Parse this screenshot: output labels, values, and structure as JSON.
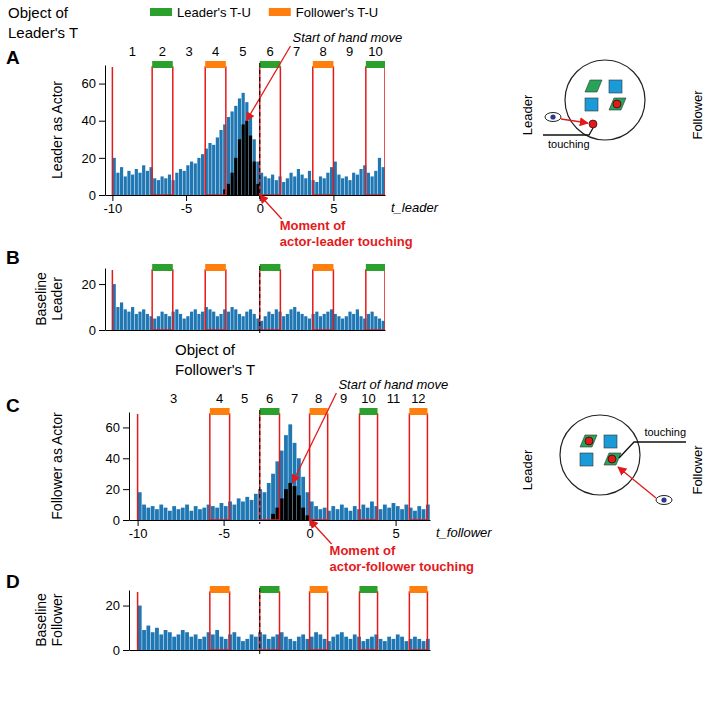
{
  "chart_data": [
    {
      "type": "histogram",
      "panel": "A",
      "title": "Object of Leader's T",
      "y_label": "Leader as Actor",
      "x_label": "t_leader",
      "xlim": [
        -10.5,
        8.5
      ],
      "ylim": [
        0,
        70
      ],
      "xticks": [
        -10,
        -5,
        0,
        5
      ],
      "yticks": [
        0,
        20,
        40,
        60
      ],
      "legend": "top",
      "legend_entries": [
        {
          "name": "Leader's T-U",
          "color": "#2ca02c"
        },
        {
          "name": "Follower's T-U",
          "color": "#ff7f0e"
        }
      ],
      "bins": [
        -10.5,
        -10.25,
        -10,
        -9.75,
        -9.5,
        -9.25,
        -9,
        -8.75,
        -8.5,
        -8.25,
        -8,
        -7.75,
        -7.5,
        -7.25,
        -7,
        -6.75,
        -6.5,
        -6.25,
        -6,
        -5.75,
        -5.5,
        -5.25,
        -5,
        -4.75,
        -4.5,
        -4.25,
        -4,
        -3.75,
        -3.5,
        -3.25,
        -3,
        -2.75,
        -2.5,
        -2.25,
        -2,
        -1.75,
        -1.5,
        -1.25,
        -1,
        -0.75,
        -0.5,
        -0.25,
        0,
        0.25,
        0.5,
        0.75,
        1,
        1.25,
        1.5,
        1.75,
        2,
        2.25,
        2.5,
        2.75,
        3,
        3.25,
        3.5,
        3.75,
        4,
        4.25,
        4.5,
        4.75,
        5,
        5.25,
        5.5,
        5.75,
        6,
        6.25,
        6.5,
        6.75,
        7,
        7.25,
        7.5,
        7.75,
        8,
        8.25,
        8.5
      ],
      "series": [
        {
          "color": "#1f77b4",
          "values": [
            0,
            0,
            20,
            12,
            15,
            10,
            13,
            11,
            14,
            12,
            16,
            13,
            15,
            9,
            8,
            10,
            9,
            11,
            8,
            12,
            14,
            13,
            16,
            18,
            17,
            20,
            22,
            25,
            28,
            27,
            31,
            35,
            38,
            42,
            45,
            48,
            52,
            55,
            50,
            42,
            30,
            18,
            12,
            10,
            9,
            11,
            8,
            10,
            7,
            9,
            12,
            10,
            14,
            11,
            9,
            13,
            8,
            7,
            10,
            9,
            12,
            15,
            18,
            11,
            9,
            10,
            8,
            12,
            11,
            14,
            16,
            12,
            10,
            13,
            20,
            15
          ]
        },
        {
          "color": "#000000",
          "values": [
            0,
            0,
            0,
            0,
            0,
            0,
            0,
            0,
            0,
            0,
            0,
            0,
            0,
            0,
            0,
            0,
            0,
            0,
            0,
            0,
            0,
            0,
            0,
            0,
            0,
            0,
            0,
            0,
            0,
            0,
            0,
            0,
            3,
            6,
            12,
            20,
            30,
            38,
            40,
            32,
            18,
            6,
            0,
            0,
            0,
            0,
            0,
            0,
            0,
            0,
            0,
            0,
            0,
            0,
            0,
            0,
            0,
            0,
            0,
            0,
            0,
            0,
            0,
            0,
            0,
            0,
            0,
            0,
            0,
            0,
            0,
            0,
            0,
            0,
            0,
            0
          ]
        }
      ],
      "segments": [
        {
          "label": "1",
          "start": -10,
          "end": -7.3
        },
        {
          "label": "2",
          "start": -7.3,
          "end": -5.9,
          "color": "#2ca02c"
        },
        {
          "label": "3",
          "start": -5.9,
          "end": -3.7
        },
        {
          "label": "4",
          "start": -3.7,
          "end": -2.3,
          "color": "#ff7f0e"
        },
        {
          "label": "5",
          "start": -2.3,
          "end": 0
        },
        {
          "label": "6",
          "start": 0,
          "end": 1.4,
          "color": "#2ca02c"
        },
        {
          "label": "7",
          "start": 1.4,
          "end": 3.6
        },
        {
          "label": "8",
          "start": 3.6,
          "end": 5,
          "color": "#ff7f0e"
        },
        {
          "label": "9",
          "start": 5,
          "end": 7.2
        },
        {
          "label": "10",
          "start": 7.2,
          "end": 8.5,
          "color": "#2ca02c"
        }
      ],
      "annotations": [
        {
          "text": "Start of hand move",
          "x": -0.9,
          "y": 40
        },
        {
          "text": "Moment of actor-leader touching",
          "x": 0,
          "y": 0
        }
      ],
      "vline_x": 0
    },
    {
      "type": "histogram",
      "panel": "B",
      "y_label": "Baseline Leader",
      "tick_labels": "y",
      "xlim": [
        -10.5,
        8.5
      ],
      "ylim": [
        0,
        27
      ],
      "yticks": [
        0,
        20
      ],
      "bins": [
        -10.5,
        -10.25,
        -10,
        -9.75,
        -9.5,
        -9.25,
        -9,
        -8.75,
        -8.5,
        -8.25,
        -8,
        -7.75,
        -7.5,
        -7.25,
        -7,
        -6.75,
        -6.5,
        -6.25,
        -6,
        -5.75,
        -5.5,
        -5.25,
        -5,
        -4.75,
        -4.5,
        -4.25,
        -4,
        -3.75,
        -3.5,
        -3.25,
        -3,
        -2.75,
        -2.5,
        -2.25,
        -2,
        -1.75,
        -1.5,
        -1.25,
        -1,
        -0.75,
        -0.5,
        -0.25,
        0,
        0.25,
        0.5,
        0.75,
        1,
        1.25,
        1.5,
        1.75,
        2,
        2.25,
        2.5,
        2.75,
        3,
        3.25,
        3.5,
        3.75,
        4,
        4.25,
        4.5,
        4.75,
        5,
        5.25,
        5.5,
        5.75,
        6,
        6.25,
        6.5,
        6.75,
        7,
        7.25,
        7.5,
        7.75,
        8,
        8.25,
        8.5
      ],
      "series": [
        {
          "color": "#1f77b4",
          "values": [
            0,
            0,
            20,
            10,
            12,
            9,
            8,
            10,
            7,
            8,
            9,
            7,
            6,
            5,
            6,
            8,
            7,
            6,
            8,
            9,
            7,
            5,
            6,
            8,
            9,
            7,
            8,
            10,
            9,
            8,
            6,
            7,
            9,
            8,
            10,
            9,
            7,
            6,
            8,
            9,
            7,
            5,
            4,
            6,
            8,
            7,
            9,
            8,
            6,
            7,
            9,
            10,
            8,
            7,
            6,
            5,
            7,
            8,
            6,
            7,
            8,
            9,
            7,
            6,
            5,
            6,
            8,
            7,
            9,
            6,
            5,
            7,
            8,
            6,
            5,
            4
          ]
        }
      ],
      "start_line": -10,
      "boxes": [
        {
          "start": -7.3,
          "end": -5.9,
          "color": "#2ca02c"
        },
        {
          "start": -3.7,
          "end": -2.3,
          "color": "#ff7f0e"
        },
        {
          "start": 0,
          "end": 1.4,
          "color": "#2ca02c"
        },
        {
          "start": 3.6,
          "end": 5,
          "color": "#ff7f0e"
        },
        {
          "start": 7.2,
          "end": 8.5,
          "color": "#2ca02c"
        }
      ]
    },
    {
      "type": "histogram",
      "panel": "C",
      "title": "Object of Follower's T",
      "y_label": "Follower as Actor",
      "x_label": "t_follower",
      "xlim": [
        -10.5,
        7
      ],
      "ylim": [
        0,
        70
      ],
      "xticks": [
        -10,
        -5,
        0,
        5
      ],
      "yticks": [
        0,
        20,
        40,
        60
      ],
      "bins": [
        -10.5,
        -10.25,
        -10,
        -9.75,
        -9.5,
        -9.25,
        -9,
        -8.75,
        -8.5,
        -8.25,
        -8,
        -7.75,
        -7.5,
        -7.25,
        -7,
        -6.75,
        -6.5,
        -6.25,
        -6,
        -5.75,
        -5.5,
        -5.25,
        -5,
        -4.75,
        -4.5,
        -4.25,
        -4,
        -3.75,
        -3.5,
        -3.25,
        -3,
        -2.75,
        -2.5,
        -2.25,
        -2,
        -1.75,
        -1.5,
        -1.25,
        -1,
        -0.75,
        -0.5,
        -0.25,
        0,
        0.25,
        0.5,
        0.75,
        1,
        1.25,
        1.5,
        1.75,
        2,
        2.25,
        2.5,
        2.75,
        3,
        3.25,
        3.5,
        3.75,
        4,
        4.25,
        4.5,
        4.75,
        5,
        5.25,
        5.5,
        5.75,
        6,
        6.25,
        6.5,
        6.75,
        7
      ],
      "series": [
        {
          "color": "#1f77b4",
          "values": [
            0,
            0,
            18,
            10,
            8,
            9,
            7,
            10,
            8,
            6,
            9,
            7,
            8,
            10,
            6,
            9,
            7,
            8,
            10,
            9,
            8,
            11,
            9,
            12,
            10,
            14,
            12,
            15,
            13,
            17,
            20,
            18,
            24,
            30,
            38,
            45,
            55,
            62,
            50,
            40,
            28,
            18,
            12,
            9,
            7,
            8,
            6,
            9,
            7,
            10,
            8,
            6,
            9,
            7,
            10,
            8,
            12,
            9,
            7,
            10,
            8,
            11,
            9,
            7,
            10,
            8,
            6,
            9,
            7,
            10
          ]
        },
        {
          "color": "#000000",
          "values": [
            0,
            0,
            0,
            0,
            0,
            0,
            0,
            0,
            0,
            0,
            0,
            0,
            0,
            0,
            0,
            0,
            0,
            0,
            0,
            0,
            0,
            0,
            0,
            0,
            0,
            0,
            0,
            0,
            0,
            0,
            0,
            0,
            0,
            4,
            8,
            14,
            20,
            24,
            22,
            16,
            8,
            3,
            0,
            0,
            0,
            0,
            0,
            0,
            0,
            0,
            0,
            0,
            0,
            0,
            0,
            0,
            0,
            0,
            0,
            0,
            0,
            0,
            0,
            0,
            0,
            0,
            0,
            0,
            0,
            0
          ]
        }
      ],
      "segments": [
        {
          "label": "3",
          "start": -10,
          "end": -5.8
        },
        {
          "label": "4",
          "start": -5.8,
          "end": -4.65,
          "color": "#ff7f0e"
        },
        {
          "label": "5",
          "start": -4.65,
          "end": -2.9
        },
        {
          "label": "6",
          "start": -2.9,
          "end": -1.75,
          "color": "#2ca02c"
        },
        {
          "label": "7",
          "start": -1.75,
          "end": 0
        },
        {
          "label": "8",
          "start": 0,
          "end": 1.05,
          "color": "#ff7f0e"
        },
        {
          "label": "9",
          "start": 1.05,
          "end": 2.9
        },
        {
          "label": "10",
          "start": 2.9,
          "end": 3.95,
          "color": "#2ca02c"
        },
        {
          "label": "11",
          "start": 3.95,
          "end": 5.8
        },
        {
          "label": "12",
          "start": 5.8,
          "end": 6.85,
          "color": "#ff7f0e"
        }
      ],
      "annotations": [
        {
          "text": "Start of hand move",
          "x": -1,
          "y": 24
        },
        {
          "text": "Moment of actor-follower touching",
          "x": 0,
          "y": 0
        }
      ]
    },
    {
      "type": "histogram",
      "panel": "D",
      "y_label": "Baseline Follower",
      "tick_labels": "y",
      "xlim": [
        -10.5,
        7
      ],
      "ylim": [
        0,
        27
      ],
      "yticks": [
        0,
        20
      ],
      "bins": [
        -10.5,
        -10.25,
        -10,
        -9.75,
        -9.5,
        -9.25,
        -9,
        -8.75,
        -8.5,
        -8.25,
        -8,
        -7.75,
        -7.5,
        -7.25,
        -7,
        -6.75,
        -6.5,
        -6.25,
        -6,
        -5.75,
        -5.5,
        -5.25,
        -5,
        -4.75,
        -4.5,
        -4.25,
        -4,
        -3.75,
        -3.5,
        -3.25,
        -3,
        -2.75,
        -2.5,
        -2.25,
        -2,
        -1.75,
        -1.5,
        -1.25,
        -1,
        -0.75,
        -0.5,
        -0.25,
        0,
        0.25,
        0.5,
        0.75,
        1,
        1.25,
        1.5,
        1.75,
        2,
        2.25,
        2.5,
        2.75,
        3,
        3.25,
        3.5,
        3.75,
        4,
        4.25,
        4.5,
        4.75,
        5,
        5.25,
        5.5,
        5.75,
        6,
        6.25,
        6.5,
        6.75,
        7
      ],
      "series": [
        {
          "color": "#1f77b4",
          "values": [
            0,
            0,
            20,
            9,
            11,
            8,
            10,
            7,
            9,
            8,
            6,
            7,
            9,
            8,
            6,
            7,
            5,
            6,
            8,
            7,
            9,
            6,
            5,
            7,
            8,
            6,
            4,
            5,
            7,
            6,
            8,
            7,
            5,
            6,
            7,
            8,
            6,
            5,
            4,
            6,
            7,
            5,
            6,
            8,
            7,
            5,
            4,
            6,
            7,
            8,
            6,
            5,
            7,
            6,
            4,
            5,
            6,
            7,
            5,
            4,
            6,
            5,
            7,
            6,
            4,
            5,
            6,
            5,
            4,
            5
          ]
        }
      ],
      "start_line": -10,
      "boxes": [
        {
          "start": -5.8,
          "end": -4.65,
          "color": "#ff7f0e"
        },
        {
          "start": -2.9,
          "end": -1.75,
          "color": "#2ca02c"
        },
        {
          "start": 0,
          "end": 1.05,
          "color": "#ff7f0e"
        },
        {
          "start": 2.9,
          "end": 3.95,
          "color": "#2ca02c"
        },
        {
          "start": 5.8,
          "end": 6.85,
          "color": "#ff7f0e"
        }
      ]
    }
  ],
  "diagrams": [
    {
      "left_label": "Leader",
      "right_label": "Follower",
      "action": "touching"
    },
    {
      "left_label": "Leader",
      "right_label": "Follower",
      "action": "touching"
    }
  ]
}
